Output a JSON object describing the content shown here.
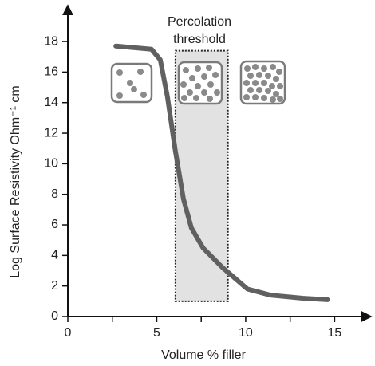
{
  "chart_data": {
    "type": "line",
    "x_label": "Volume % filler",
    "y_label": "Log Surface Resistivity Ohm⁻¹ cm",
    "annotation": [
      "Percolation",
      "threshold"
    ],
    "x": [
      2.7,
      4.7,
      5.2,
      5.6,
      6.05,
      6.5,
      6.95,
      7.6,
      8.7,
      10.1,
      11.4,
      13.2,
      14.6
    ],
    "series": [
      {
        "color": "#606060",
        "values": [
          17.7,
          17.5,
          16.8,
          14.4,
          10.8,
          7.7,
          5.8,
          4.5,
          3.2,
          1.8,
          1.4,
          1.2,
          1.1
        ]
      }
    ],
    "shaded_region": {
      "x": [
        6.05,
        9.0
      ],
      "y": [
        1.0,
        17.4
      ],
      "color": "#e2e2e2"
    },
    "xlim": [
      0,
      17
    ],
    "ylim": [
      0,
      20.3
    ],
    "xticks": [
      0,
      5,
      10,
      15
    ],
    "xminorticks": [
      2.5,
      7.5,
      12.5
    ],
    "yticks": [
      0,
      2,
      4,
      6,
      8,
      10,
      12,
      14,
      16,
      18
    ]
  }
}
